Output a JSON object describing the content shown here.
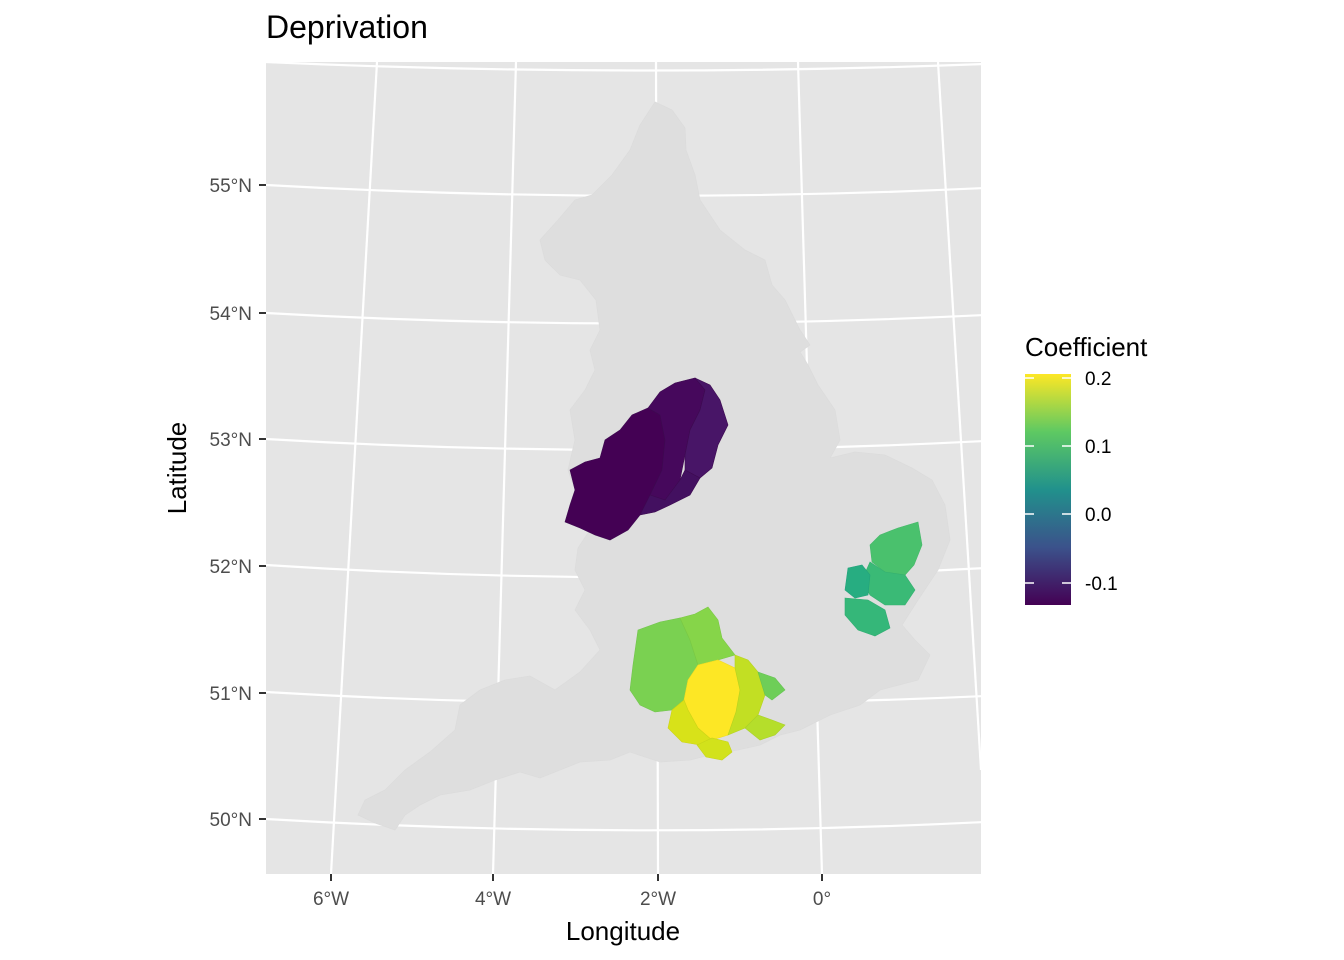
{
  "title": "Deprivation",
  "x_axis_label": "Longitude",
  "y_axis_label": "Latitude",
  "x_ticks": [
    "6°W",
    "4°W",
    "2°W",
    "0°"
  ],
  "y_ticks": [
    "55°N",
    "54°N",
    "53°N",
    "52°N",
    "51°N",
    "50°N"
  ],
  "legend": {
    "title": "Coefficient",
    "labels": [
      "0.2",
      "0.1",
      "0.0",
      "-0.1"
    ],
    "colors": [
      "#fde725",
      "#5ec962",
      "#21918c",
      "#3b528b",
      "#440154"
    ]
  },
  "colors": {
    "panel_background": "#e5e5e5",
    "grid": "#ffffff",
    "unselected_land": "#dedede"
  },
  "chart_data": {
    "type": "map",
    "title": "Deprivation",
    "xlabel": "Longitude",
    "ylabel": "Latitude",
    "fill_variable": "Coefficient",
    "color_scale": "viridis",
    "scale_range": [
      -0.13,
      0.21
    ],
    "regions": [
      {
        "area": "Midlands cluster (Staffordshire / Derbyshire / Nottinghamshire area)",
        "value_range": [
          -0.13,
          -0.08
        ]
      },
      {
        "area": "Essex / Suffolk cluster",
        "value_range": [
          0.08,
          0.13
        ]
      },
      {
        "area": "Hampshire / Wiltshire / Surrey / Isle of Wight cluster",
        "value_range": [
          0.13,
          0.21
        ]
      }
    ]
  }
}
